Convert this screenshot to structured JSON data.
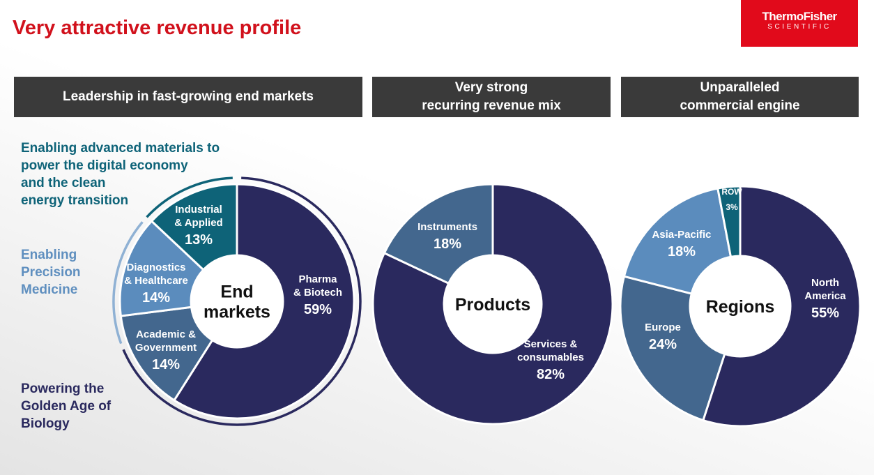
{
  "title": "Very attractive revenue profile",
  "logo": {
    "line1": "ThermoFisher",
    "line2": "SCIENTIFIC"
  },
  "headers": [
    "Leadership in fast-growing end markets",
    "Very strong\nrecurring revenue mix",
    "Unparalleled\ncommercial engine"
  ],
  "side_labels": {
    "materials": "Enabling advanced materials to\npower the digital economy\nand the clean\nenergy transition",
    "precision": "Enabling\nPrecision\nMedicine",
    "biology": "Powering the\nGolden Age of\nBiology"
  },
  "colors": {
    "title_red": "#d1111c",
    "logo_red": "#e10a1b",
    "header_bg": "#3a3a3a",
    "navy": "#2a295e",
    "teal": "#0e6378",
    "steel": "#43678e",
    "light_blue": "#5b8cbd",
    "side_materials": "#0e6378",
    "side_precision": "#5f8fbf",
    "side_biology": "#2a295e"
  },
  "chart_data": [
    {
      "type": "pie",
      "center_label": [
        "End",
        "markets"
      ],
      "categories": [
        "Pharma & Biotech",
        "Academic & Government",
        "Diagnostics & Healthcare",
        "Industrial & Applied"
      ],
      "label_lines": [
        [
          "Pharma",
          "& Biotech"
        ],
        [
          "Academic &",
          "Government"
        ],
        [
          "Diagnostics",
          "& Healthcare"
        ],
        [
          "Industrial",
          "& Applied"
        ]
      ],
      "values": [
        59,
        14,
        14,
        13
      ],
      "value_labels": [
        "59%",
        "14%",
        "14%",
        "13%"
      ],
      "colors": [
        "#2a295e",
        "#43678e",
        "#5b8cbd",
        "#0e6378"
      ]
    },
    {
      "type": "pie",
      "center_label": [
        "Products"
      ],
      "categories": [
        "Services & consumables",
        "Instruments"
      ],
      "label_lines": [
        [
          "Services &",
          "consumables"
        ],
        [
          "Instruments"
        ]
      ],
      "values": [
        82,
        18
      ],
      "value_labels": [
        "82%",
        "18%"
      ],
      "colors": [
        "#2a295e",
        "#43678e"
      ]
    },
    {
      "type": "pie",
      "center_label": [
        "Regions"
      ],
      "categories": [
        "North America",
        "Europe",
        "Asia-Pacific",
        "ROW"
      ],
      "label_lines": [
        [
          "North",
          "America"
        ],
        [
          "Europe"
        ],
        [
          "Asia-Pacific"
        ],
        [
          "ROW"
        ]
      ],
      "values": [
        55,
        24,
        18,
        3
      ],
      "value_labels": [
        "55%",
        "24%",
        "18%",
        "3%"
      ],
      "colors": [
        "#2a295e",
        "#43678e",
        "#5b8cbd",
        "#0e6378"
      ]
    }
  ]
}
